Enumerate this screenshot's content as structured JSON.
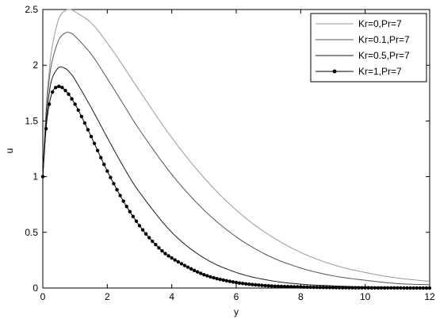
{
  "chart_data": {
    "type": "line",
    "title": "",
    "xlabel": "y",
    "ylabel": "u",
    "xlim": [
      0,
      12
    ],
    "ylim": [
      0,
      2.5
    ],
    "xticks": [
      0,
      2,
      4,
      6,
      8,
      10,
      12
    ],
    "xtick_labels": [
      "0",
      "2",
      "4",
      "6",
      "8",
      "10",
      "12"
    ],
    "yticks": [
      0,
      0.5,
      1,
      1.5,
      2,
      2.5
    ],
    "ytick_labels": [
      "0",
      "0.5",
      "1",
      "1.5",
      "2",
      "2.5"
    ],
    "grid": false,
    "legend_position": "top-right",
    "series": [
      {
        "name": "Kr=0,Pr=7",
        "color": "#999999",
        "marker": "none",
        "x": [
          0,
          0.1,
          0.2,
          0.3,
          0.5,
          0.7,
          0.85,
          1,
          1.5,
          2,
          2.5,
          3,
          4,
          5,
          6,
          7,
          8,
          9,
          10,
          11,
          12
        ],
        "y": [
          1.0,
          1.6,
          1.95,
          2.18,
          2.42,
          2.49,
          2.5,
          2.48,
          2.38,
          2.2,
          1.99,
          1.77,
          1.35,
          0.99,
          0.7,
          0.48,
          0.32,
          0.21,
          0.14,
          0.09,
          0.06
        ]
      },
      {
        "name": "Kr=0.1,Pr=7",
        "color": "#555555",
        "marker": "none",
        "x": [
          0,
          0.1,
          0.2,
          0.3,
          0.5,
          0.7,
          0.85,
          1,
          1.5,
          2,
          2.5,
          3,
          4,
          5,
          6,
          7,
          8,
          9,
          10,
          11,
          12
        ],
        "y": [
          1.0,
          1.55,
          1.87,
          2.05,
          2.23,
          2.29,
          2.29,
          2.26,
          2.1,
          1.88,
          1.65,
          1.42,
          1.02,
          0.7,
          0.46,
          0.29,
          0.18,
          0.11,
          0.07,
          0.04,
          0.03
        ]
      },
      {
        "name": "Kr=0.5,Pr=7",
        "color": "#1a1a1a",
        "marker": "none",
        "x": [
          0,
          0.1,
          0.2,
          0.3,
          0.5,
          0.7,
          0.85,
          1,
          1.5,
          2,
          2.5,
          3,
          4,
          5,
          6,
          7,
          8,
          9,
          10,
          11,
          12
        ],
        "y": [
          1.0,
          1.48,
          1.75,
          1.89,
          1.98,
          1.97,
          1.93,
          1.87,
          1.62,
          1.35,
          1.09,
          0.86,
          0.5,
          0.27,
          0.14,
          0.07,
          0.035,
          0.02,
          0.01,
          0.005,
          0.003
        ]
      },
      {
        "name": "Kr=1,Pr=7",
        "color": "#000000",
        "marker": "dot",
        "x": [
          0,
          0.1,
          0.2,
          0.3,
          0.4,
          0.5,
          0.6,
          0.8,
          1,
          1.2,
          1.5,
          2,
          2.5,
          3,
          3.5,
          4,
          5,
          6,
          7,
          8,
          9,
          10,
          11,
          12
        ],
        "y": [
          1.0,
          1.43,
          1.65,
          1.76,
          1.8,
          1.81,
          1.8,
          1.74,
          1.65,
          1.54,
          1.36,
          1.05,
          0.78,
          0.56,
          0.39,
          0.27,
          0.12,
          0.05,
          0.02,
          0.01,
          0.004,
          0.002,
          0.001,
          0.0
        ]
      }
    ]
  }
}
